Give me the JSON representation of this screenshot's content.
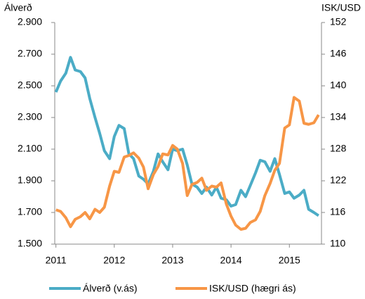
{
  "chart_data": {
    "type": "line",
    "ylabel": "Álverð",
    "y2label": "ISK/USD",
    "x": [
      2011,
      2011.08,
      2011.17,
      2011.25,
      2011.33,
      2011.42,
      2011.5,
      2011.58,
      2011.67,
      2011.75,
      2011.83,
      2011.92,
      2012,
      2012.08,
      2012.17,
      2012.25,
      2012.33,
      2012.42,
      2012.5,
      2012.58,
      2012.67,
      2012.75,
      2012.83,
      2012.92,
      2013,
      2013.08,
      2013.17,
      2013.25,
      2013.33,
      2013.42,
      2013.5,
      2013.58,
      2013.67,
      2013.75,
      2013.83,
      2013.92,
      2014,
      2014.08,
      2014.17,
      2014.25,
      2014.33,
      2014.42,
      2014.5,
      2014.58,
      2014.67,
      2014.75,
      2014.83,
      2014.92,
      2015,
      2015.08,
      2015.17,
      2015.25,
      2015.33,
      2015.42,
      2015.5
    ],
    "xlim": [
      2010.98,
      2015.55
    ],
    "xticks": [
      2011,
      2012,
      2013,
      2014,
      2015
    ],
    "ylim": [
      1500,
      2900
    ],
    "yticks": [
      {
        "value": 1500,
        "label": "1.500"
      },
      {
        "value": 1700,
        "label": "1.700"
      },
      {
        "value": 1900,
        "label": "1.900"
      },
      {
        "value": 2100,
        "label": "2.100"
      },
      {
        "value": 2300,
        "label": "2.300"
      },
      {
        "value": 2500,
        "label": "2.500"
      },
      {
        "value": 2700,
        "label": "2.700"
      },
      {
        "value": 2900,
        "label": "2.900"
      }
    ],
    "y2lim": [
      110,
      152
    ],
    "y2ticks": [
      110,
      116,
      122,
      128,
      134,
      140,
      146,
      152
    ],
    "series": [
      {
        "name": "Álverð (v.ás)",
        "color": "#4bacc6",
        "values": [
          2460,
          2530,
          2580,
          2680,
          2600,
          2590,
          2550,
          2420,
          2300,
          2200,
          2090,
          2040,
          2180,
          2250,
          2230,
          2070,
          2040,
          1930,
          1910,
          1880,
          1960,
          2070,
          2020,
          1970,
          2100,
          2090,
          2100,
          2000,
          1880,
          1860,
          1820,
          1860,
          1810,
          1860,
          1790,
          1780,
          1740,
          1750,
          1840,
          1800,
          1870,
          1950,
          2030,
          2020,
          1960,
          2040,
          1940,
          1820,
          1830,
          1790,
          1810,
          1840,
          1720,
          1700,
          1680
        ]
      },
      {
        "name": "ISK/USD (hægri ás)",
        "color": "#f79646",
        "axis": "y2",
        "values": [
          116.5,
          116.2,
          115,
          113.3,
          114.7,
          115.2,
          116,
          114.8,
          116.6,
          116,
          117,
          121,
          123.8,
          123.6,
          126.5,
          126.8,
          127.3,
          126.3,
          124.6,
          120.5,
          123.2,
          124.7,
          127.1,
          126.9,
          128.7,
          128,
          125.3,
          119.2,
          121.3,
          121.7,
          122.5,
          120.2,
          121,
          120.8,
          121.6,
          117.6,
          115.3,
          113.6,
          112.8,
          113,
          114.1,
          114.6,
          116.2,
          119.2,
          121.5,
          124,
          125.3,
          132,
          132.6,
          137.8,
          137.1,
          132.9,
          132.7,
          133,
          134.5
        ]
      }
    ]
  }
}
